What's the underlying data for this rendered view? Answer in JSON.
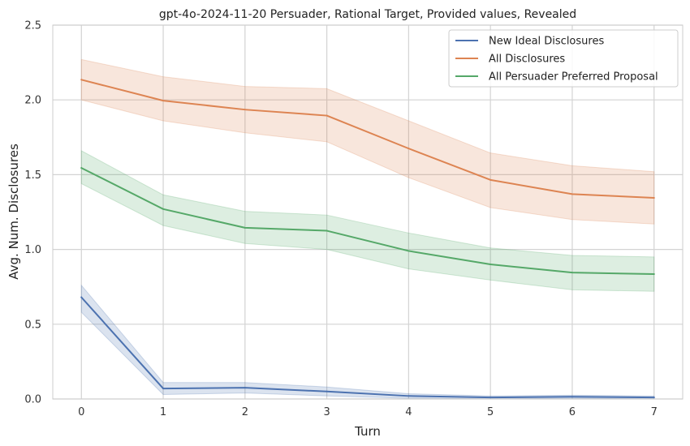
{
  "chart_data": {
    "type": "line",
    "title": "gpt-4o-2024-11-20 Persuader, Rational Target, Provided values, Revealed",
    "xlabel": "Turn",
    "ylabel": "Avg. Num. Disclosures",
    "x": [
      0,
      1,
      2,
      3,
      4,
      5,
      6,
      7
    ],
    "xlim": [
      -0.35,
      7.35
    ],
    "ylim": [
      0,
      2.5
    ],
    "xticks": [
      "0",
      "1",
      "2",
      "3",
      "4",
      "5",
      "6",
      "7"
    ],
    "yticks": [
      "0.0",
      "0.5",
      "1.0",
      "1.5",
      "2.0",
      "2.5"
    ],
    "grid": true,
    "legend_position": "top-right",
    "series": [
      {
        "name": "New Ideal Disclosures",
        "color": "#4c72b0",
        "values": [
          0.68,
          0.07,
          0.075,
          0.05,
          0.02,
          0.01,
          0.015,
          0.01
        ],
        "lower": [
          0.58,
          0.03,
          0.04,
          0.02,
          0.005,
          0.0,
          0.005,
          0.0
        ],
        "upper": [
          0.76,
          0.11,
          0.11,
          0.08,
          0.035,
          0.02,
          0.025,
          0.02
        ]
      },
      {
        "name": "All Disclosures",
        "color": "#dd8452",
        "values": [
          2.135,
          1.995,
          1.935,
          1.895,
          1.675,
          1.465,
          1.37,
          1.345
        ],
        "lower": [
          2.0,
          1.86,
          1.78,
          1.72,
          1.48,
          1.28,
          1.2,
          1.17
        ],
        "upper": [
          2.27,
          2.155,
          2.09,
          2.075,
          1.86,
          1.645,
          1.56,
          1.52
        ]
      },
      {
        "name": "All Persuader Preferred Proposal",
        "color": "#55a868",
        "values": [
          1.545,
          1.27,
          1.145,
          1.125,
          0.99,
          0.9,
          0.845,
          0.835
        ],
        "lower": [
          1.44,
          1.16,
          1.04,
          1.0,
          0.87,
          0.795,
          0.73,
          0.72
        ],
        "upper": [
          1.66,
          1.365,
          1.255,
          1.23,
          1.11,
          1.01,
          0.96,
          0.95
        ]
      }
    ]
  }
}
